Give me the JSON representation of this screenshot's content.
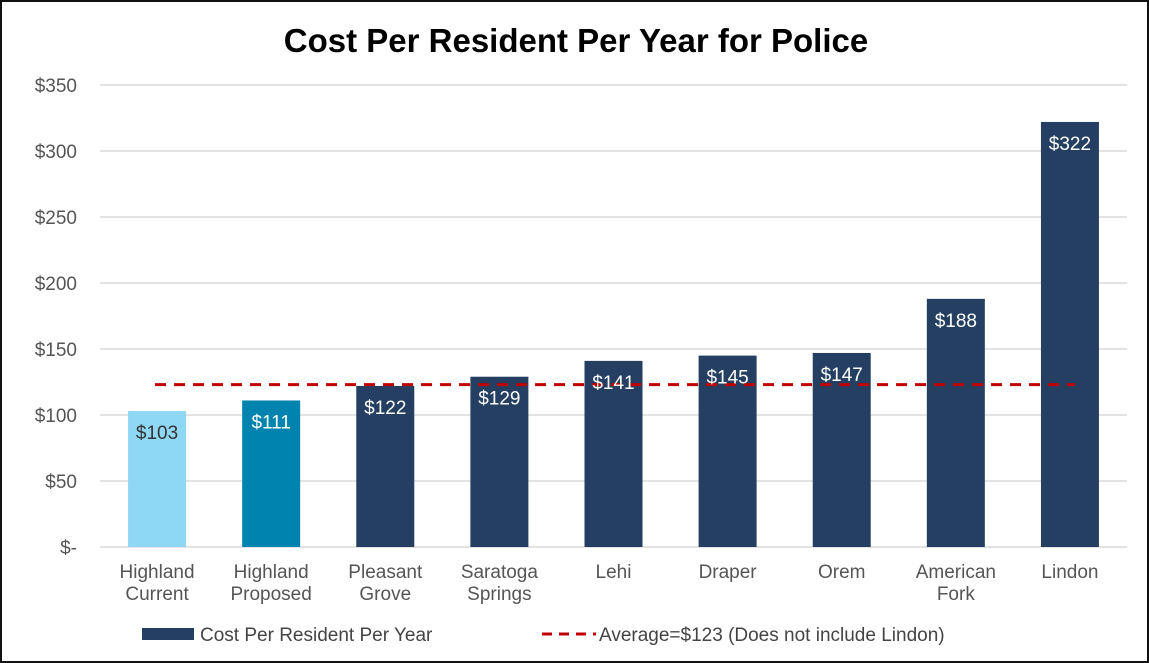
{
  "chart_data": {
    "type": "bar",
    "title": "Cost Per Resident Per Year for Police",
    "categories": [
      [
        "Highland",
        "Current"
      ],
      [
        "Highland",
        "Proposed"
      ],
      [
        "Pleasant",
        "Grove"
      ],
      [
        "Saratoga",
        "Springs"
      ],
      [
        "Lehi"
      ],
      [
        "Draper"
      ],
      [
        "Orem"
      ],
      [
        "American",
        "Fork"
      ],
      [
        "Lindon"
      ]
    ],
    "series": [
      {
        "name": "Cost Per Resident Per Year",
        "values": [
          103,
          111,
          122,
          129,
          141,
          145,
          147,
          188,
          322
        ]
      }
    ],
    "data_labels": [
      "$103",
      "$111",
      "$122",
      "$129",
      "$141",
      "$145",
      "$147",
      "$188",
      "$322"
    ],
    "bar_colors": [
      "#8fd8f5",
      "#0083ae",
      "#243f61",
      "#243f61",
      "#243f61",
      "#243f61",
      "#243f61",
      "#243f61",
      "#243f61"
    ],
    "label_colors": [
      "#333333",
      "#ffffff",
      "#ffffff",
      "#ffffff",
      "#ffffff",
      "#ffffff",
      "#ffffff",
      "#ffffff",
      "#ffffff"
    ],
    "reference_line": {
      "name": "Average=$123 (Does not include Lindon)",
      "value": 123,
      "color": "#c00000",
      "style": "dashed"
    },
    "ylim": [
      0,
      350
    ],
    "yticks": [
      0,
      50,
      100,
      150,
      200,
      250,
      300,
      350
    ],
    "ytick_labels": [
      "$-",
      "$50",
      "$100",
      "$150",
      "$200",
      "$250",
      "$300",
      "$350"
    ],
    "grid": true,
    "legend": "bottom",
    "legend_color": "#243f61"
  }
}
